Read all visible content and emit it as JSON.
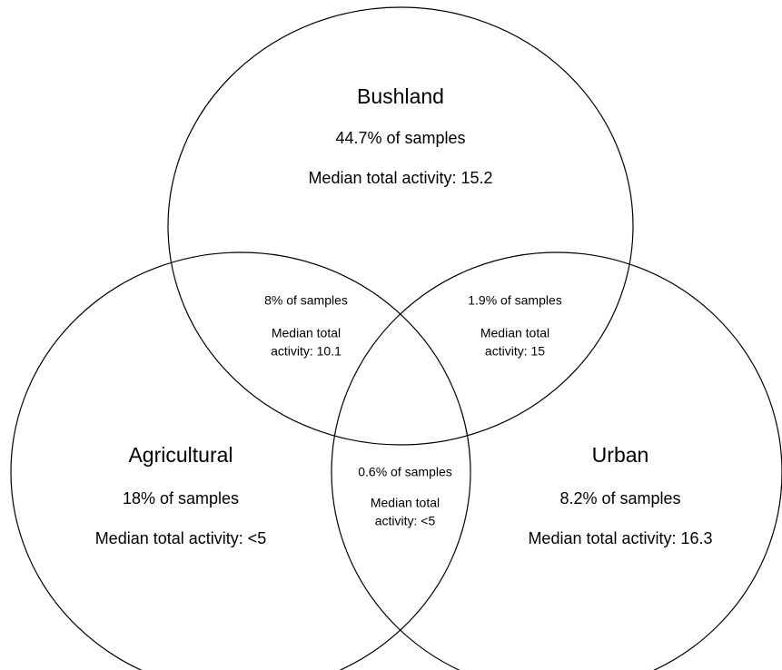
{
  "regions": [
    {
      "name": "Bushland",
      "share": "44.7% of samples",
      "median": [
        "Median total activity: 15.2"
      ]
    },
    {
      "name": "Agricultural",
      "share": "18% of samples",
      "median": [
        "Median total activity: <5"
      ]
    },
    {
      "name": "Urban",
      "share": "8.2% of samples",
      "median": [
        "Median total activity: 16.3"
      ]
    },
    {
      "share": "8% of samples",
      "median": [
        "Median total",
        "activity: 10.1"
      ]
    },
    {
      "share": "1.9% of samples",
      "median": [
        "Median total",
        "activity: 15"
      ]
    },
    {
      "share": "0.6% of samples",
      "median": [
        "Median total",
        "activity: <5"
      ]
    }
  ]
}
